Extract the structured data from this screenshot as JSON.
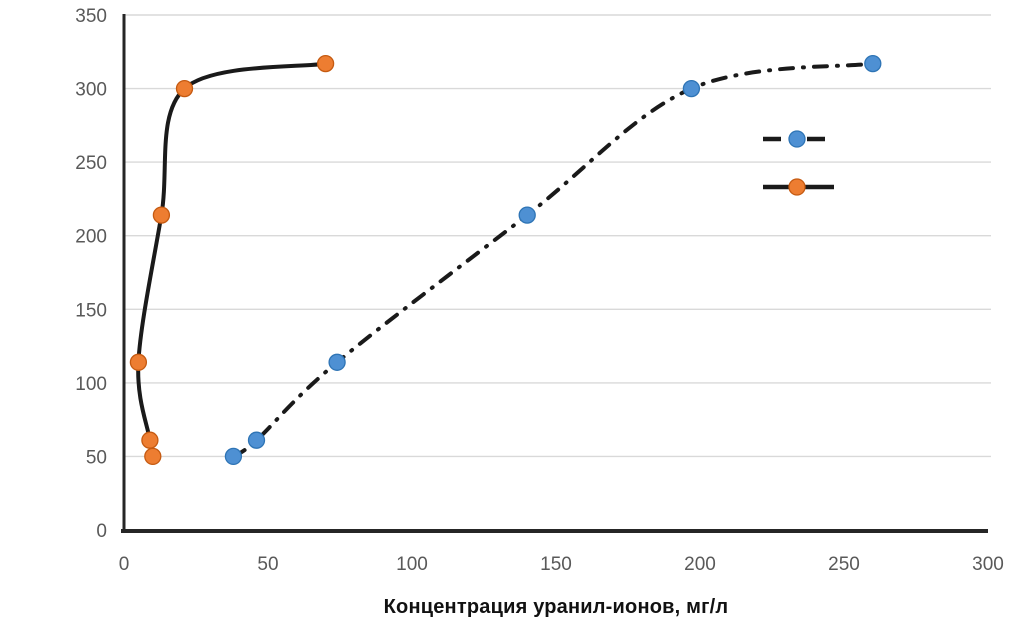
{
  "chart_data": {
    "type": "scatter",
    "smoothed_lines": true,
    "title": "",
    "xlabel": "Концентрация уранил-ионов, мг/л",
    "ylabel": "",
    "xlim": [
      0,
      300
    ],
    "ylim": [
      0,
      350
    ],
    "xticks": [
      0,
      50,
      100,
      150,
      200,
      250,
      300
    ],
    "yticks": [
      0,
      50,
      100,
      150,
      200,
      250,
      300,
      350
    ],
    "grid": "horizontal-only",
    "legend": {
      "position": "inside-right",
      "labels_visible": false,
      "entries_text": [
        "",
        ""
      ]
    },
    "series": [
      {
        "name": "blue-dash-dot-series",
        "line_style": "dash-dot",
        "line_color": "#1a1a1a",
        "marker": "circle",
        "marker_color": "#4e90d3",
        "marker_edge_color": "#2e74b5",
        "x": [
          38,
          46,
          74,
          140,
          197,
          260
        ],
        "y": [
          50,
          61,
          114,
          214,
          300,
          317
        ]
      },
      {
        "name": "orange-solid-series",
        "line_style": "solid",
        "line_color": "#1a1a1a",
        "marker": "circle",
        "marker_color": "#ed7d31",
        "marker_edge_color": "#c55a11",
        "x": [
          10,
          9,
          5,
          13,
          21,
          70
        ],
        "y": [
          50,
          61,
          114,
          214,
          300,
          317
        ]
      }
    ],
    "colors": {
      "background": "#ffffff",
      "gridline": "#d9d9d9",
      "axis": "#262626",
      "tick_label": "#595959",
      "axis_title": "#111111"
    }
  }
}
